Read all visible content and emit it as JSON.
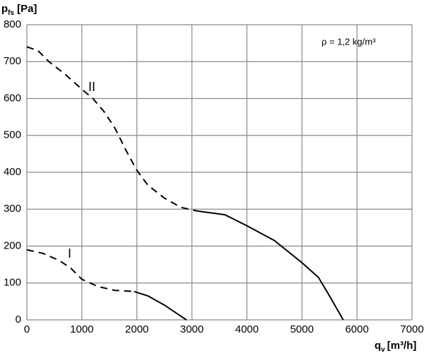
{
  "chart_data": {
    "type": "line",
    "y_label": {
      "main": "p",
      "sub": "fs",
      "unit": "[Pa]"
    },
    "x_label": {
      "main": "q",
      "sub": "v",
      "unit": "[m³/h]"
    },
    "annotation": "ρ = 1,2 kg/m³",
    "xlim": [
      0,
      7000
    ],
    "xticks": [
      0,
      1000,
      2000,
      3000,
      4000,
      5000,
      6000,
      7000
    ],
    "ylim": [
      0,
      800
    ],
    "yticks": [
      0,
      100,
      200,
      300,
      400,
      500,
      600,
      700,
      800
    ],
    "grid": true,
    "color": "#000000",
    "series": [
      {
        "name": "II",
        "dashed": {
          "x": [
            0,
            200,
            400,
            700,
            1000,
            1200,
            1400,
            1600,
            1800,
            2000,
            2200,
            2500,
            2800,
            3100
          ],
          "values": [
            740,
            730,
            700,
            665,
            625,
            600,
            565,
            520,
            460,
            405,
            365,
            330,
            305,
            295
          ]
        },
        "solid": {
          "x": [
            3100,
            3600,
            4000,
            4500,
            5000,
            5300,
            5500,
            5750
          ],
          "values": [
            295,
            285,
            255,
            215,
            155,
            115,
            65,
            0
          ]
        }
      },
      {
        "name": "I",
        "dashed": {
          "x": [
            0,
            300,
            600,
            800,
            1000,
            1300,
            1600,
            1950
          ],
          "values": [
            190,
            180,
            160,
            140,
            110,
            90,
            80,
            77
          ]
        },
        "solid": {
          "x": [
            1950,
            2200,
            2500,
            2700,
            2900
          ],
          "values": [
            77,
            65,
            40,
            20,
            0
          ]
        }
      }
    ]
  }
}
